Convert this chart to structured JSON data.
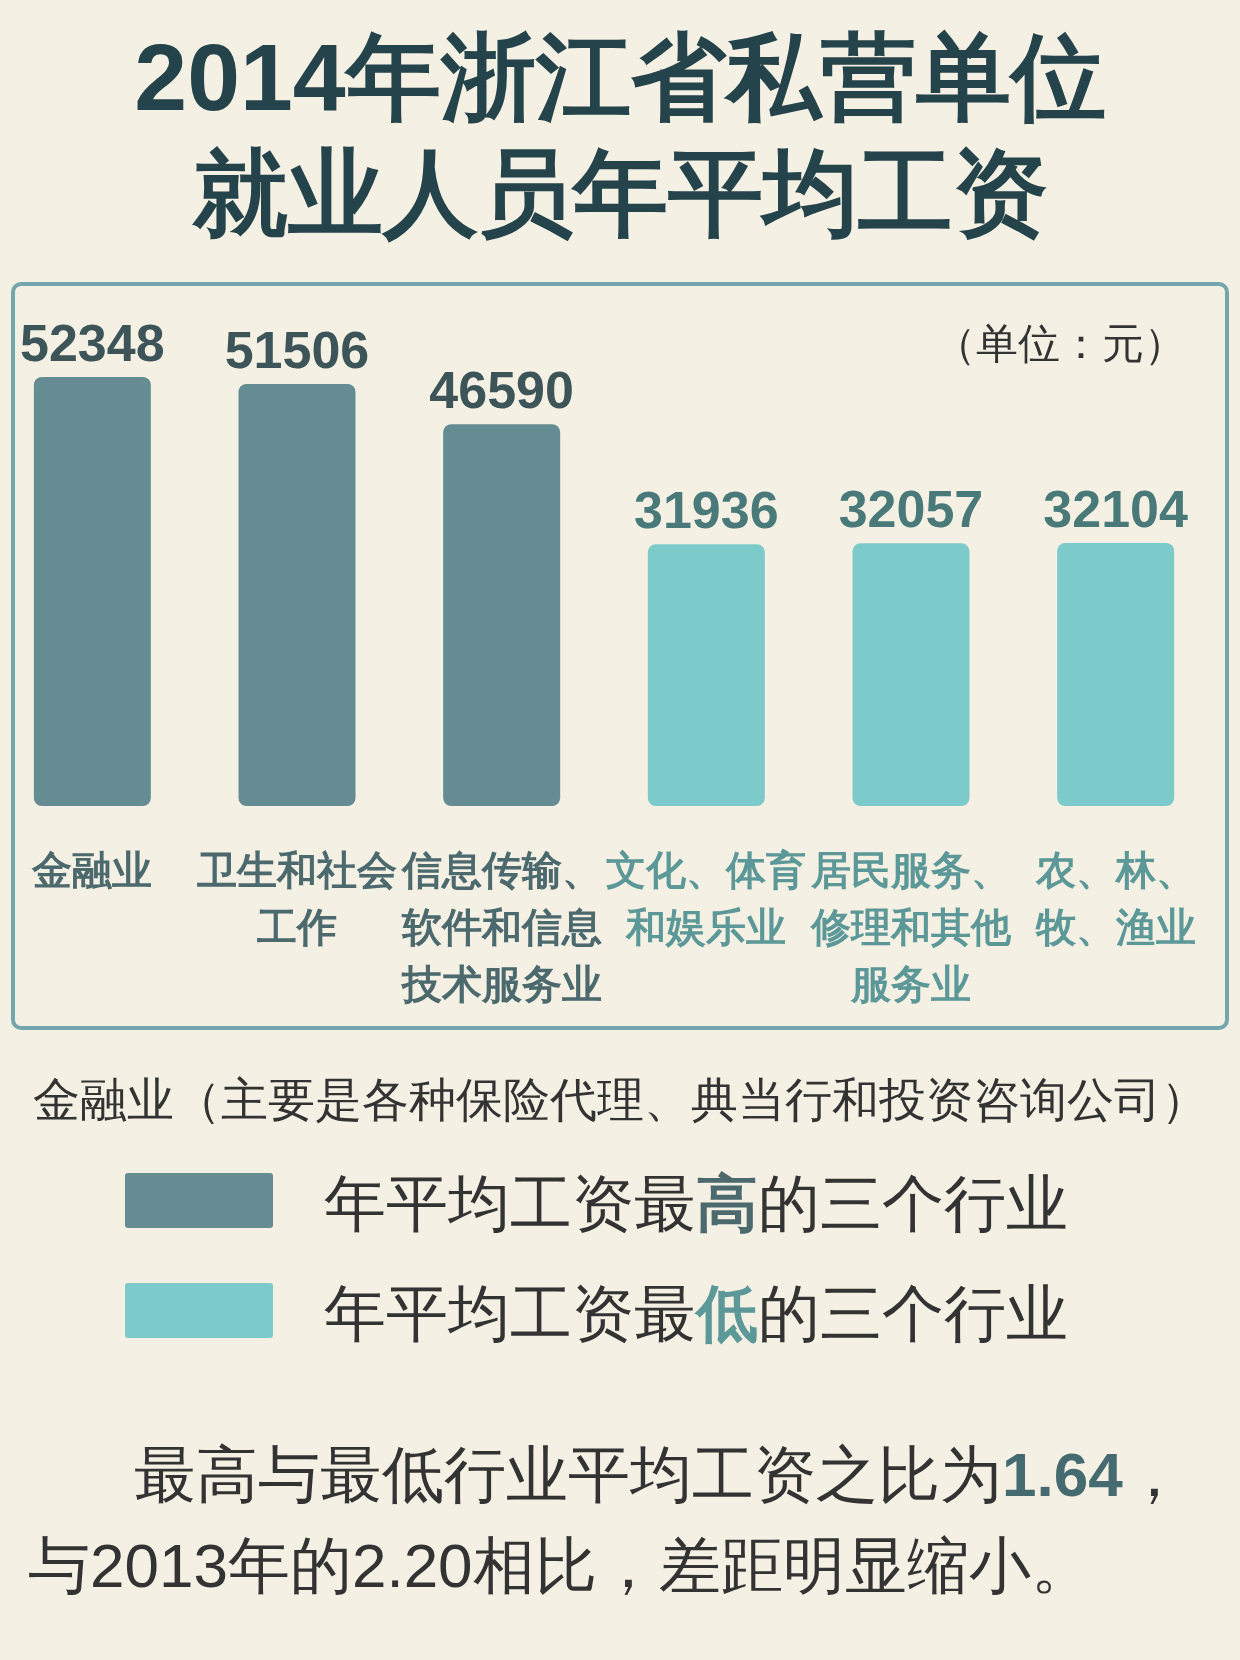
{
  "chart_data": {
    "type": "bar",
    "title": "2014年浙江省私营单位就业人员年平均工资",
    "categories": [
      "金融业",
      "卫生和社会工作",
      "信息传输、软件和信息技术服务业",
      "文化、体育和娱乐业",
      "居民服务、修理和其他服务业",
      "农、林、牧、渔业"
    ],
    "series": [
      {
        "name": "年平均工资最**高**的三个行业",
        "color": "#658c92",
        "values": [
          52348,
          51506,
          46590,
          null,
          null,
          null
        ]
      },
      {
        "name": "年平均工资最**低**的三个行业",
        "color": "#7ccaca",
        "values": [
          null,
          null,
          null,
          31936,
          32057,
          32104
        ]
      }
    ],
    "data_labels": true,
    "legend": "bottom",
    "annotations": [
      "（单位：元）",
      "金融业（主要是各种保险代理、典当行和投资咨询公司）",
      "最高与最低行业平均工资之比为**1.64**，与2013年的2.20相比，差距明显缩小。"
    ]
  }
}
